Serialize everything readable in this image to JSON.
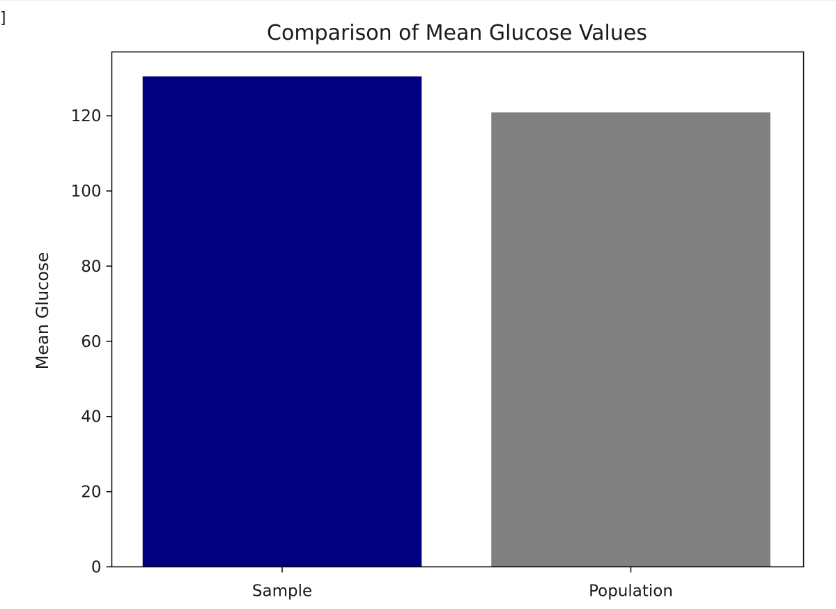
{
  "cell_marker": "]",
  "chart_data": {
    "type": "bar",
    "title": "Comparison of Mean Glucose Values",
    "xlabel": "",
    "ylabel": "Mean Glucose",
    "categories": [
      "Sample",
      "Population"
    ],
    "values": [
      130.5,
      120.9
    ],
    "colors": [
      "#000080",
      "#808080"
    ],
    "ylim": [
      0,
      137
    ],
    "yticks": [
      0,
      20,
      40,
      60,
      80,
      100,
      120
    ],
    "grid": false
  }
}
